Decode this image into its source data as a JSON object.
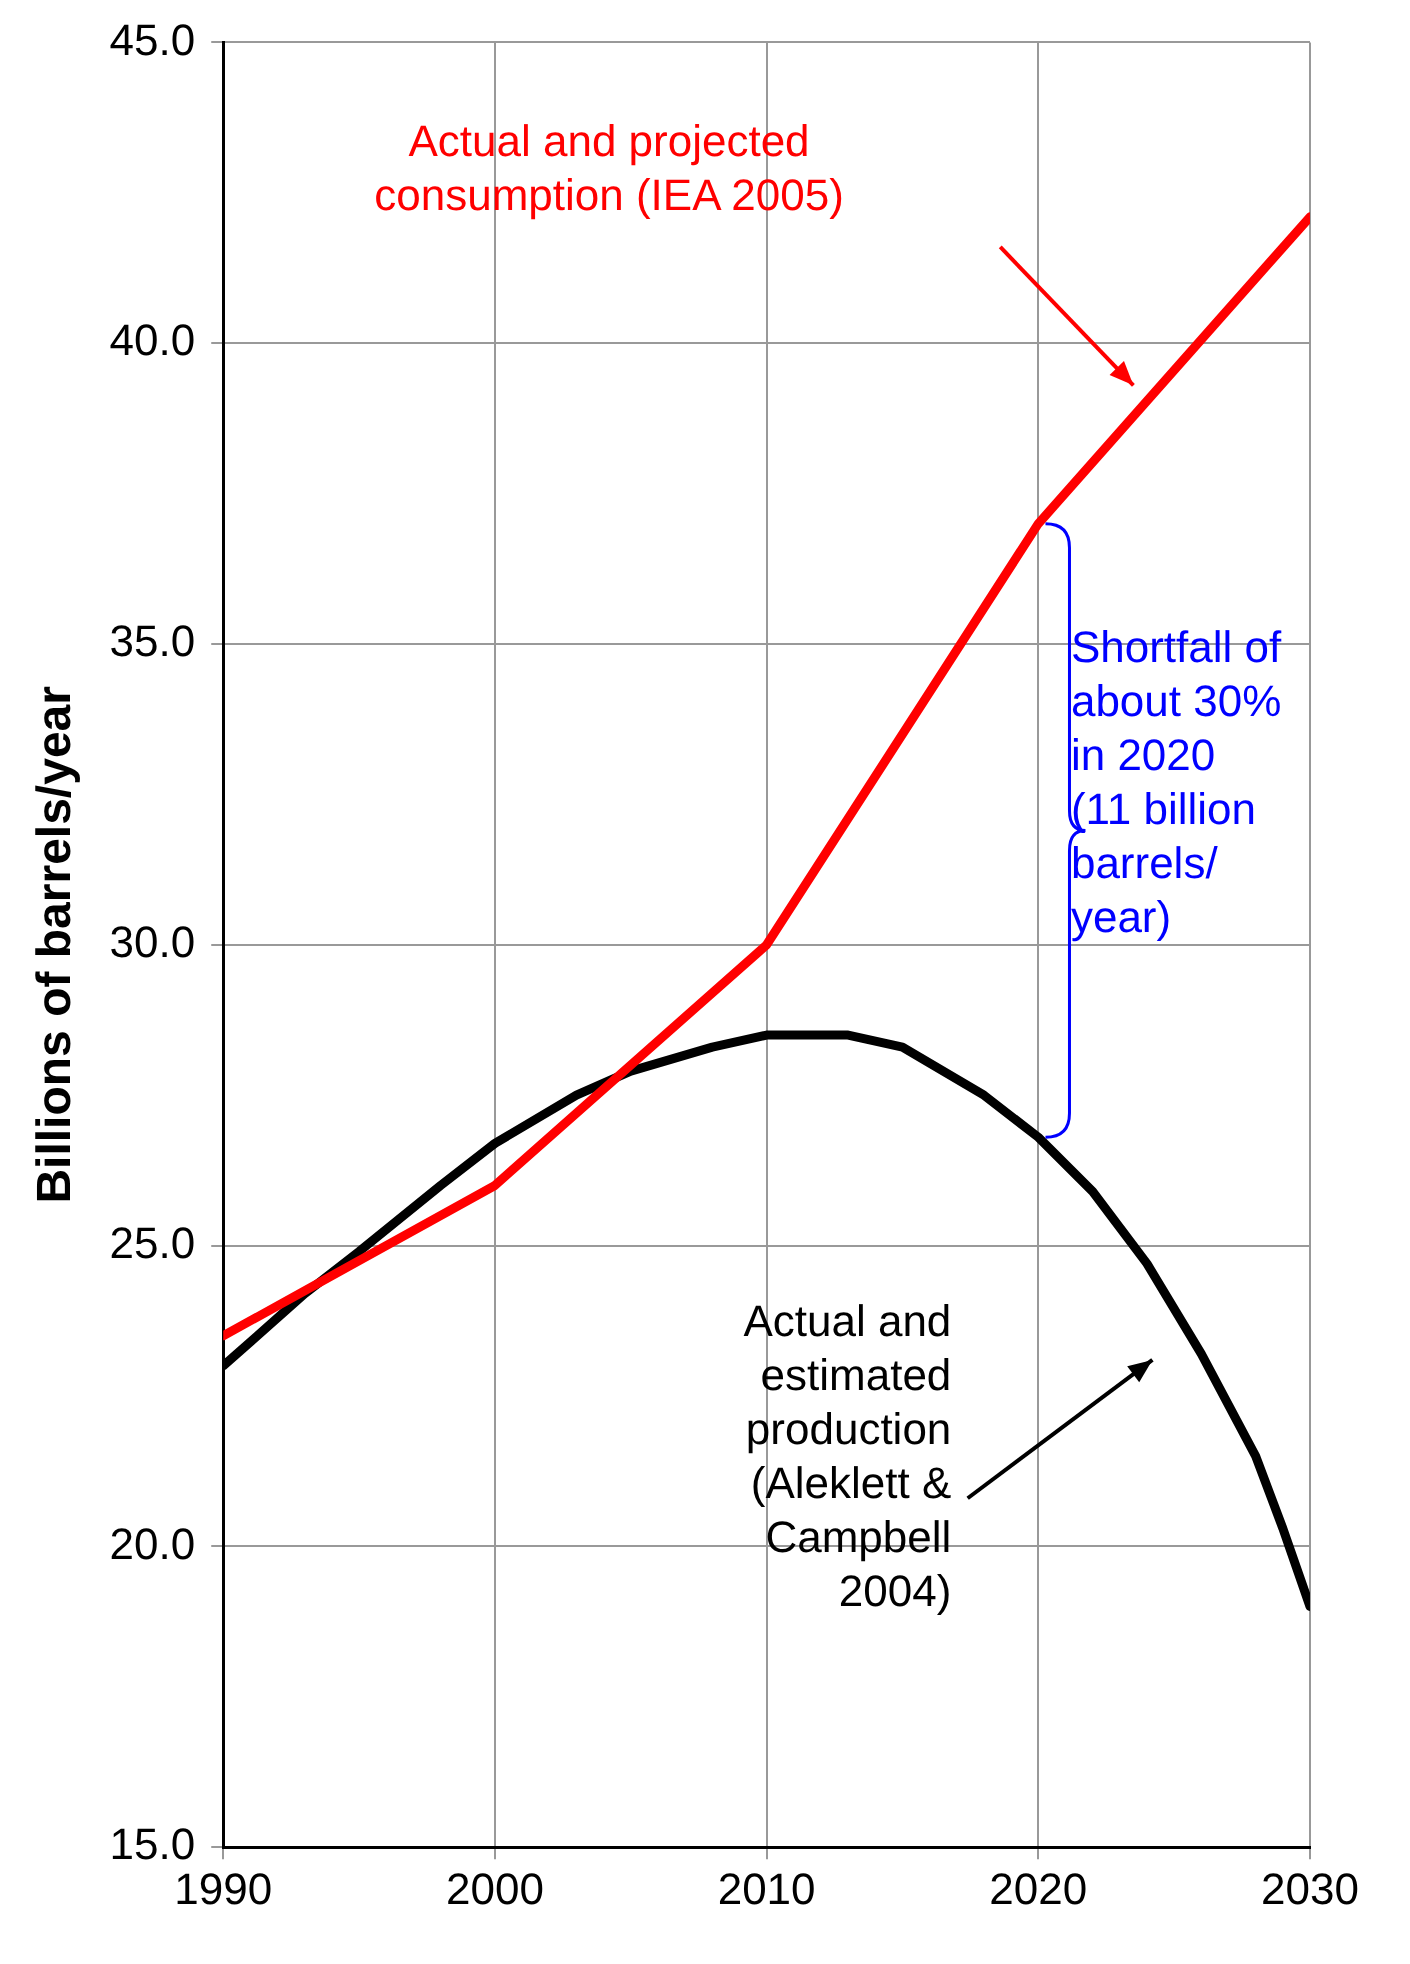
{
  "chart_data": {
    "type": "line",
    "ylabel": "Billions of barrels/year",
    "xlim": [
      1990,
      2030
    ],
    "xticks": [
      1990,
      2000,
      2010,
      2020,
      2030
    ],
    "ylim": [
      15,
      45
    ],
    "yticks": [
      {
        "value": 15,
        "label": "15.0"
      },
      {
        "value": 20,
        "label": "20.0"
      },
      {
        "value": 25,
        "label": "25.0"
      },
      {
        "value": 30,
        "label": "30.0"
      },
      {
        "value": 35,
        "label": "35.0"
      },
      {
        "value": 40,
        "label": "40.0"
      },
      {
        "value": 45,
        "label": "45.0"
      }
    ],
    "grid": true,
    "legend": false,
    "marker": "none",
    "line_style": "solid",
    "series": [
      {
        "color": "#ff0000",
        "x": [
          1990,
          2000,
          2010,
          2020,
          2030
        ],
        "values": [
          23.5,
          26.0,
          30.0,
          37.0,
          42.1
        ]
      },
      {
        "color": "#000000",
        "x": [
          1990,
          1993,
          1995,
          1998,
          2000,
          2003,
          2005,
          2008,
          2010,
          2013,
          2015,
          2018,
          2020,
          2022,
          2024,
          2026,
          2028,
          2029,
          2030
        ],
        "values": [
          23.0,
          24.2,
          24.9,
          26.0,
          26.7,
          27.5,
          27.9,
          28.3,
          28.5,
          28.5,
          28.3,
          27.5,
          26.8,
          25.9,
          24.7,
          23.2,
          21.5,
          20.3,
          19.0
        ]
      }
    ],
    "annotations": [
      "Actual and projected\nconsumption (IEA 2005)",
      "Shortfall of\nabout 30%\nin 2020\n(11 billion\nbarrels/\nyear)",
      "Actual and\nestimated\nproduction\n(Aleklett &\nCampbell\n2004)"
    ]
  }
}
